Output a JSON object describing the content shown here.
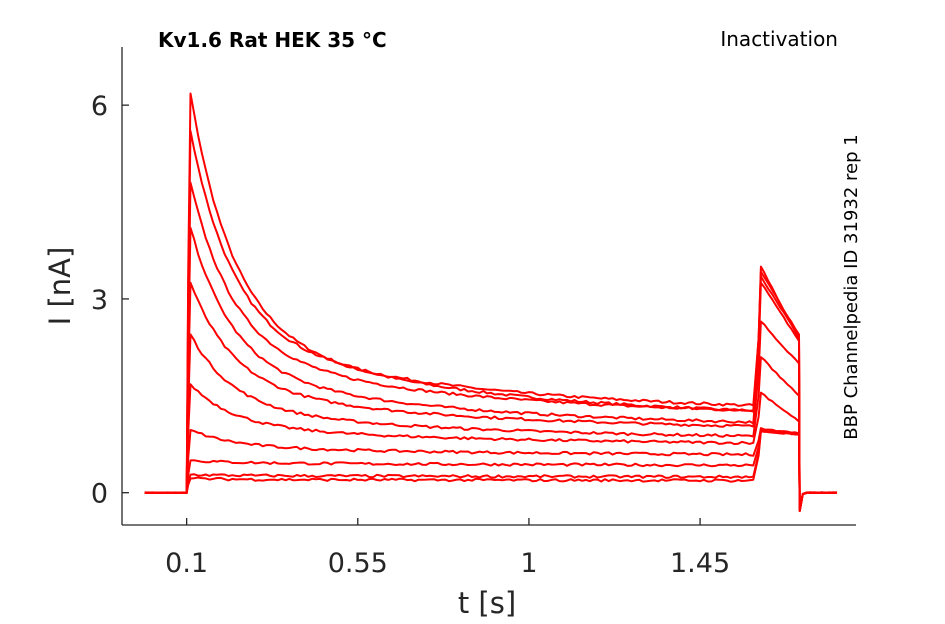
{
  "header": {
    "title": "Kv1.6  Rat  HEK  35 °C",
    "protocol": "Inactivation",
    "source": "BBP Channelpedia ID 31932 rep 1"
  },
  "chart_data": {
    "type": "line",
    "xlabel": "t [s]",
    "ylabel": "I [nA]",
    "xlim": [
      -0.07,
      1.86
    ],
    "ylim": [
      -0.5,
      6.9
    ],
    "xticks": [
      0.1,
      0.55,
      1,
      1.45
    ],
    "xtick_labels": [
      "0.1",
      "0.55",
      "1",
      "1.45"
    ],
    "yticks": [
      0,
      3,
      6
    ],
    "ytick_labels": [
      "0",
      "3",
      "6"
    ],
    "grid": false,
    "color": "#ff0000",
    "step_on": 0.1,
    "step_off": 1.6,
    "end": 1.71,
    "baseline_start": -0.01,
    "baseline_end": 1.81,
    "series": [
      {
        "peak": 6.18,
        "late": 1.25,
        "tail_start": 3.5,
        "tail_end": 2.38
      },
      {
        "peak": 5.6,
        "late": 1.35,
        "tail_start": 3.42,
        "tail_end": 2.45
      },
      {
        "peak": 4.8,
        "late": 1.28,
        "tail_start": 3.35,
        "tail_end": 2.42
      },
      {
        "peak": 4.1,
        "late": 1.1,
        "tail_start": 3.25,
        "tail_end": 2.35
      },
      {
        "peak": 3.25,
        "late": 1.05,
        "tail_start": 2.65,
        "tail_end": 2.0
      },
      {
        "peak": 2.45,
        "late": 0.9,
        "tail_start": 2.1,
        "tail_end": 1.5
      },
      {
        "peak": 1.68,
        "late": 0.8,
        "tail_start": 1.55,
        "tail_end": 1.1
      },
      {
        "peak": 0.97,
        "late": 0.62,
        "tail_start": 1.0,
        "tail_end": 0.9
      },
      {
        "peak": 0.5,
        "late": 0.45,
        "tail_start": 0.97,
        "tail_end": 0.92
      },
      {
        "peak": 0.28,
        "late": 0.26,
        "tail_start": 0.96,
        "tail_end": 0.9
      },
      {
        "peak": 0.22,
        "late": 0.2,
        "tail_start": 0.95,
        "tail_end": 0.9
      }
    ]
  }
}
